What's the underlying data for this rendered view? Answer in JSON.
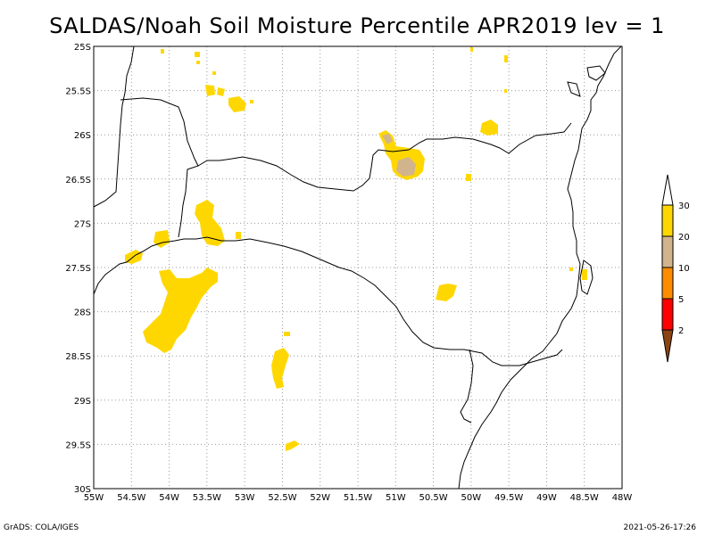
{
  "title": "SALDAS/Noah Soil Moisture Percentile APR2019 lev = 1",
  "map": {
    "lon_range": [
      -55,
      -48
    ],
    "lat_range": [
      -30,
      -25
    ],
    "x_ticks": [
      "55W",
      "54.5W",
      "54W",
      "53.5W",
      "53W",
      "52.5W",
      "52W",
      "51.5W",
      "51W",
      "50.5W",
      "50W",
      "49.5W",
      "49W",
      "48.5W",
      "48W"
    ],
    "y_ticks": [
      "25S",
      "25.5S",
      "26S",
      "26.5S",
      "27S",
      "27.5S",
      "28S",
      "28.5S",
      "29S",
      "29.5S",
      "30S"
    ],
    "grid": true
  },
  "legend": {
    "labels": [
      "30",
      "20",
      "10",
      "5",
      "2"
    ],
    "colors": {
      "pct_20_30": "#FFD700",
      "pct_10_20": "#D2B48C",
      "pct_5_10": "#FF8C00",
      "pct_2_5": "#FF0000",
      "pct_below_2": "#8B4513",
      "above_30": "#FFFFFF"
    }
  },
  "footer": {
    "left": "GrADS: COLA/IGES",
    "right": "2021-05-26-17:26"
  }
}
